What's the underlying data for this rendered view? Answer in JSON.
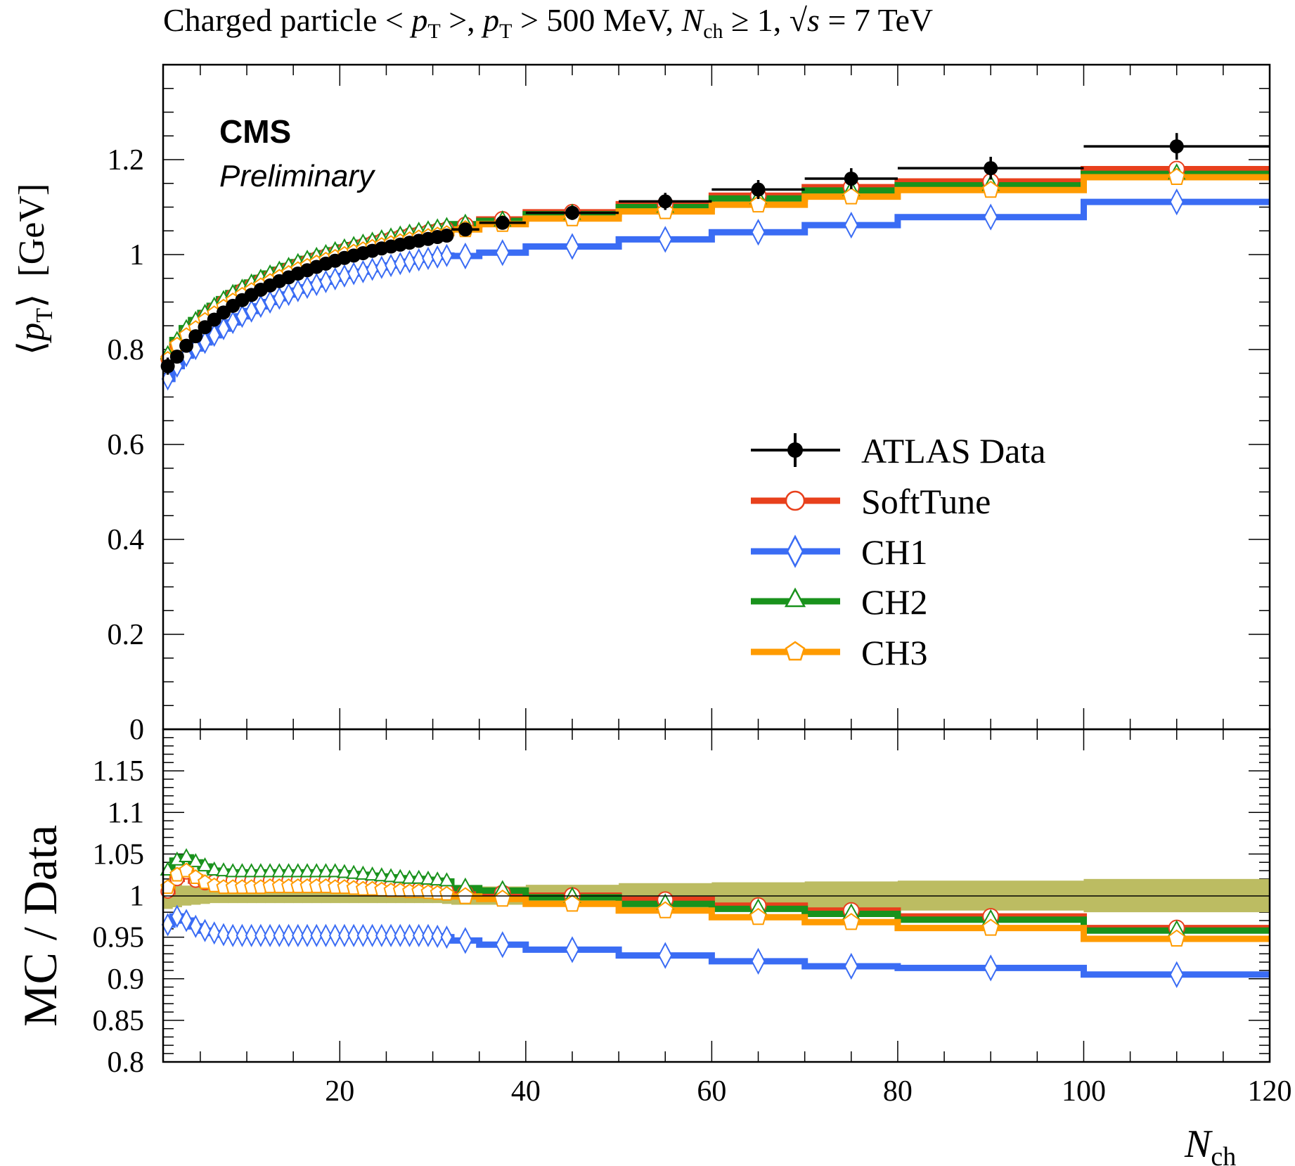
{
  "title": "Charged particle < p_T >, p_T > 500 MeV, N_ch ≥ 1, √s = 7 TeV",
  "title_parts": {
    "t1": "Charged particle < ",
    "p": "p",
    "T": "T",
    "t2": " >, ",
    "t3": " > 500 MeV, ",
    "N": "N",
    "ch": "ch",
    "t4": " ≥ 1, ",
    "sqrt": "√",
    "s": "s",
    "t5": " = 7 TeV"
  },
  "top_ylabel": {
    "l": "⟨",
    "p": "p",
    "T": "T",
    "r": "⟩",
    "unit": "[GeV]"
  },
  "bottom_ylabel": "MC / Data",
  "xlabel": {
    "N": "N",
    "ch": "ch"
  },
  "cms_label": "CMS",
  "prelim_label": "Preliminary",
  "colors": {
    "data": "#000000",
    "softtune": "#e8401c",
    "ch1": "#3a6cf4",
    "ch2": "#19921c",
    "ch3": "#ff9b00",
    "band": "#bcbc62"
  },
  "legend": [
    {
      "key": "data",
      "label": "ATLAS Data",
      "marker": "filled-circle"
    },
    {
      "key": "softtune",
      "label": "SoftTune",
      "marker": "open-circle"
    },
    {
      "key": "ch1",
      "label": "CH1",
      "marker": "open-diamond"
    },
    {
      "key": "ch2",
      "label": "CH2",
      "marker": "open-triangle"
    },
    {
      "key": "ch3",
      "label": "CH3",
      "marker": "open-pentagon"
    }
  ],
  "chart_data": {
    "type": "line",
    "x_range": [
      1,
      120
    ],
    "top": {
      "ylim": [
        0,
        1.4
      ],
      "yticks": [
        {
          "v": 0,
          "label": "0"
        },
        {
          "v": 0.2,
          "label": "0.2"
        },
        {
          "v": 0.4,
          "label": "0.4"
        },
        {
          "v": 0.6,
          "label": "0.6"
        },
        {
          "v": 0.8,
          "label": "0.8"
        },
        {
          "v": 1,
          "label": "1"
        },
        {
          "v": 1.2,
          "label": "1.2"
        }
      ]
    },
    "ratio": {
      "ylim": [
        0.8,
        1.2
      ],
      "yticks": [
        {
          "v": 0.8,
          "label": "0.8"
        },
        {
          "v": 0.85,
          "label": "0.85"
        },
        {
          "v": 0.9,
          "label": "0.9"
        },
        {
          "v": 0.95,
          "label": "0.95"
        },
        {
          "v": 1,
          "label": "1"
        },
        {
          "v": 1.05,
          "label": "1.05"
        },
        {
          "v": 1.1,
          "label": "1.1"
        },
        {
          "v": 1.15,
          "label": "1.15"
        }
      ]
    },
    "xticks": [
      {
        "v": 20,
        "label": "20"
      },
      {
        "v": 40,
        "label": "40"
      },
      {
        "v": 60,
        "label": "60"
      },
      {
        "v": 80,
        "label": "80"
      },
      {
        "v": 100,
        "label": "100"
      },
      {
        "v": 120,
        "label": "120"
      }
    ],
    "bins": [
      [
        1,
        2
      ],
      [
        2,
        3
      ],
      [
        3,
        4
      ],
      [
        4,
        5
      ],
      [
        5,
        6
      ],
      [
        6,
        7
      ],
      [
        7,
        8
      ],
      [
        8,
        9
      ],
      [
        9,
        10
      ],
      [
        10,
        11
      ],
      [
        11,
        12
      ],
      [
        12,
        13
      ],
      [
        13,
        14
      ],
      [
        14,
        15
      ],
      [
        15,
        16
      ],
      [
        16,
        17
      ],
      [
        17,
        18
      ],
      [
        18,
        19
      ],
      [
        19,
        20
      ],
      [
        20,
        21
      ],
      [
        21,
        22
      ],
      [
        22,
        23
      ],
      [
        23,
        24
      ],
      [
        24,
        25
      ],
      [
        25,
        26
      ],
      [
        26,
        27
      ],
      [
        27,
        28
      ],
      [
        28,
        29
      ],
      [
        29,
        30
      ],
      [
        30,
        31
      ],
      [
        31,
        32
      ],
      [
        32,
        35
      ],
      [
        35,
        40
      ],
      [
        40,
        50
      ],
      [
        50,
        60
      ],
      [
        60,
        70
      ],
      [
        70,
        80
      ],
      [
        80,
        100
      ],
      [
        100,
        120
      ]
    ],
    "series": [
      {
        "name": "ATLAS Data",
        "key": "data",
        "values": [
          0.765,
          0.785,
          0.808,
          0.828,
          0.847,
          0.863,
          0.878,
          0.892,
          0.904,
          0.915,
          0.926,
          0.935,
          0.944,
          0.952,
          0.96,
          0.967,
          0.974,
          0.981,
          0.987,
          0.993,
          0.998,
          1.003,
          1.008,
          1.013,
          1.017,
          1.021,
          1.025,
          1.029,
          1.033,
          1.037,
          1.04,
          1.053,
          1.067,
          1.088,
          1.112,
          1.137,
          1.16,
          1.182,
          1.228
        ],
        "errors": [
          0.018,
          0.014,
          0.012,
          0.011,
          0.01,
          0.009,
          0.009,
          0.008,
          0.008,
          0.008,
          0.008,
          0.008,
          0.008,
          0.008,
          0.008,
          0.008,
          0.008,
          0.008,
          0.008,
          0.008,
          0.008,
          0.008,
          0.008,
          0.008,
          0.008,
          0.008,
          0.008,
          0.009,
          0.009,
          0.009,
          0.009,
          0.01,
          0.012,
          0.015,
          0.018,
          0.02,
          0.022,
          0.024,
          0.028
        ]
      },
      {
        "name": "SoftTune",
        "key": "softtune",
        "values": [
          0.78,
          0.81,
          0.835,
          0.852,
          0.87,
          0.885,
          0.9,
          0.913,
          0.925,
          0.935,
          0.945,
          0.953,
          0.962,
          0.97,
          0.978,
          0.985,
          0.992,
          0.998,
          1.004,
          1.01,
          1.015,
          1.02,
          1.025,
          1.03,
          1.034,
          1.038,
          1.042,
          1.045,
          1.049,
          1.052,
          1.055,
          1.062,
          1.074,
          1.089,
          1.106,
          1.124,
          1.142,
          1.154,
          1.18
        ]
      },
      {
        "name": "CH1",
        "key": "ch1",
        "values": [
          0.738,
          0.765,
          0.787,
          0.802,
          0.815,
          0.83,
          0.844,
          0.857,
          0.87,
          0.881,
          0.891,
          0.9,
          0.908,
          0.916,
          0.924,
          0.931,
          0.937,
          0.943,
          0.949,
          0.955,
          0.96,
          0.964,
          0.969,
          0.973,
          0.977,
          0.981,
          0.985,
          0.989,
          0.992,
          0.995,
          0.998,
          0.997,
          1.004,
          1.017,
          1.032,
          1.047,
          1.062,
          1.079,
          1.111
        ]
      },
      {
        "name": "CH2",
        "key": "ch2",
        "values": [
          0.79,
          0.82,
          0.845,
          0.862,
          0.877,
          0.892,
          0.906,
          0.919,
          0.93,
          0.941,
          0.951,
          0.96,
          0.968,
          0.976,
          0.984,
          0.991,
          0.997,
          1.003,
          1.009,
          1.015,
          1.02,
          1.025,
          1.029,
          1.034,
          1.038,
          1.042,
          1.046,
          1.05,
          1.053,
          1.057,
          1.06,
          1.064,
          1.071,
          1.085,
          1.1,
          1.118,
          1.135,
          1.146,
          1.17
        ]
      },
      {
        "name": "CH3",
        "key": "ch3",
        "values": [
          0.78,
          0.81,
          0.83,
          0.845,
          0.862,
          0.876,
          0.89,
          0.903,
          0.915,
          0.925,
          0.935,
          0.944,
          0.953,
          0.961,
          0.969,
          0.976,
          0.983,
          0.989,
          0.995,
          1.001,
          1.006,
          1.011,
          1.016,
          1.02,
          1.024,
          1.028,
          1.032,
          1.036,
          1.039,
          1.042,
          1.045,
          1.053,
          1.064,
          1.076,
          1.091,
          1.105,
          1.122,
          1.136,
          1.163
        ]
      }
    ],
    "ratio_series": [
      {
        "key": "softtune",
        "values": [
          1.005,
          1.02,
          1.028,
          1.018,
          1.015,
          1.017,
          1.018,
          1.018,
          1.018,
          1.018,
          1.018,
          1.018,
          1.018,
          1.018,
          1.018,
          1.018,
          1.018,
          1.018,
          1.017,
          1.016,
          1.015,
          1.014,
          1.013,
          1.012,
          1.011,
          1.01,
          1.009,
          1.008,
          1.008,
          1.007,
          1.006,
          1.003,
          1.003,
          1.0,
          0.995,
          0.988,
          0.982,
          0.975,
          0.961
        ]
      },
      {
        "key": "ch1",
        "values": [
          0.965,
          0.975,
          0.97,
          0.963,
          0.958,
          0.955,
          0.953,
          0.952,
          0.952,
          0.952,
          0.952,
          0.952,
          0.952,
          0.952,
          0.952,
          0.952,
          0.952,
          0.952,
          0.952,
          0.952,
          0.952,
          0.952,
          0.952,
          0.952,
          0.952,
          0.952,
          0.952,
          0.952,
          0.952,
          0.951,
          0.95,
          0.946,
          0.941,
          0.935,
          0.928,
          0.921,
          0.915,
          0.913,
          0.905
        ]
      },
      {
        "key": "ch2",
        "values": [
          1.03,
          1.042,
          1.046,
          1.04,
          1.035,
          1.03,
          1.029,
          1.028,
          1.028,
          1.028,
          1.028,
          1.028,
          1.028,
          1.028,
          1.028,
          1.028,
          1.028,
          1.028,
          1.028,
          1.027,
          1.026,
          1.025,
          1.024,
          1.023,
          1.022,
          1.021,
          1.02,
          1.02,
          1.019,
          1.018,
          1.017,
          1.009,
          1.006,
          0.998,
          0.99,
          0.984,
          0.978,
          0.971,
          0.958
        ]
      },
      {
        "key": "ch3",
        "values": [
          1.01,
          1.025,
          1.03,
          1.022,
          1.016,
          1.012,
          1.01,
          1.01,
          1.01,
          1.01,
          1.01,
          1.011,
          1.011,
          1.011,
          1.011,
          1.011,
          1.011,
          1.011,
          1.01,
          1.01,
          1.009,
          1.008,
          1.008,
          1.007,
          1.006,
          1.006,
          1.005,
          1.005,
          1.004,
          1.003,
          1.002,
          0.999,
          0.996,
          0.99,
          0.982,
          0.974,
          0.968,
          0.961,
          0.948
        ]
      }
    ],
    "ratio_band": [
      0.016,
      0.014,
      0.012,
      0.011,
      0.01,
      0.009,
      0.009,
      0.009,
      0.009,
      0.009,
      0.009,
      0.009,
      0.009,
      0.009,
      0.009,
      0.009,
      0.009,
      0.009,
      0.009,
      0.009,
      0.009,
      0.009,
      0.009,
      0.009,
      0.009,
      0.009,
      0.009,
      0.009,
      0.009,
      0.009,
      0.01,
      0.011,
      0.011,
      0.013,
      0.015,
      0.016,
      0.017,
      0.018,
      0.02
    ]
  }
}
